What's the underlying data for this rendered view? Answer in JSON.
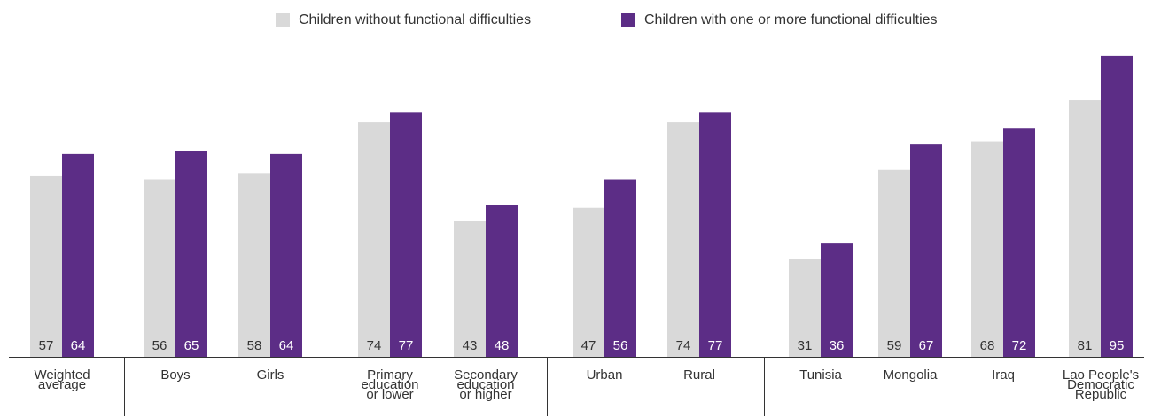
{
  "colors": {
    "without": "#d9d9d9",
    "with": "#5c2d86",
    "axis": "#333333",
    "label_dark": "#333333",
    "label_light": "#ffffff"
  },
  "legend": {
    "without_label": "Children without functional difficulties",
    "with_label": "Children with one or more functional difficulties"
  },
  "chart_data": {
    "type": "bar",
    "categories": [
      [
        "Weighted",
        "average"
      ],
      [
        "Boys"
      ],
      [
        "Girls"
      ],
      [
        "Primary",
        "education",
        "or lower"
      ],
      [
        "Secondary",
        "education",
        "or higher"
      ],
      [
        "Urban"
      ],
      [
        "Rural"
      ],
      [
        "Tunisia"
      ],
      [
        "Mongolia"
      ],
      [
        "Iraq"
      ],
      [
        "Lao People's",
        "Democratic",
        "Republic"
      ]
    ],
    "groups": [
      [
        0
      ],
      [
        1,
        2
      ],
      [
        3,
        4
      ],
      [
        5,
        6
      ],
      [
        7,
        8,
        9,
        10
      ]
    ],
    "series": [
      {
        "name": "Children without functional difficulties",
        "values": [
          57,
          56,
          58,
          74,
          43,
          47,
          74,
          31,
          59,
          68,
          81
        ]
      },
      {
        "name": "Children with one or more functional difficulties",
        "values": [
          64,
          65,
          64,
          77,
          48,
          56,
          77,
          36,
          67,
          72,
          95
        ]
      }
    ],
    "ylim": [
      0,
      95
    ],
    "legend_position": "top"
  }
}
